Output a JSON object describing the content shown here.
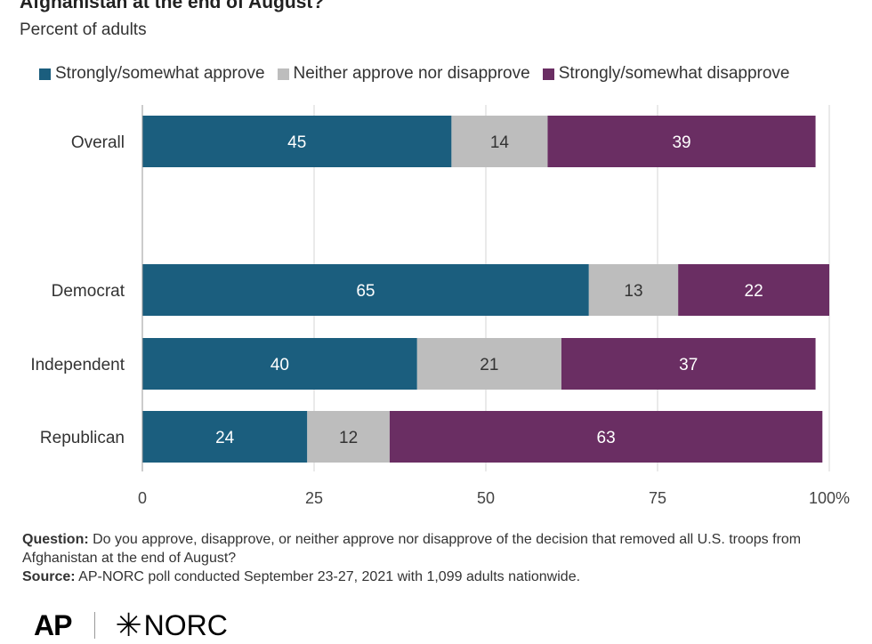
{
  "title": "Afghanistan at the end of August?",
  "subtitle": "Percent of adults",
  "colors": {
    "approve": "#1b5e7e",
    "neither": "#bdbdbd",
    "disapprove": "#6a2e63",
    "grid": "#d6d6d6",
    "text": "#333333"
  },
  "chart_data": {
    "type": "bar",
    "orientation": "horizontal",
    "stacked": true,
    "categories": [
      "Overall",
      "Democrat",
      "Independent",
      "Republican"
    ],
    "series": [
      {
        "name": "Strongly/somewhat approve",
        "values": [
          45,
          65,
          40,
          24
        ]
      },
      {
        "name": "Neither approve nor disapprove",
        "values": [
          14,
          13,
          21,
          12
        ]
      },
      {
        "name": "Strongly/somewhat disapprove",
        "values": [
          39,
          22,
          37,
          63
        ]
      }
    ],
    "xlim": [
      0,
      100
    ],
    "xticks": [
      "0",
      "25",
      "50",
      "75",
      "100%"
    ],
    "grid": true,
    "legend_position": "top"
  },
  "footnote": {
    "question_label": "Question:",
    "question_text": "Do you approve, disapprove, or neither approve nor disapprove of the decision that removed all U.S. troops from Afghanistan at the end of August?",
    "source_label": "Source:",
    "source_text": "AP-NORC poll conducted September 23-27, 2021 with 1,099 adults nationwide."
  },
  "logos": {
    "ap": "AP",
    "norc": "NORC"
  }
}
